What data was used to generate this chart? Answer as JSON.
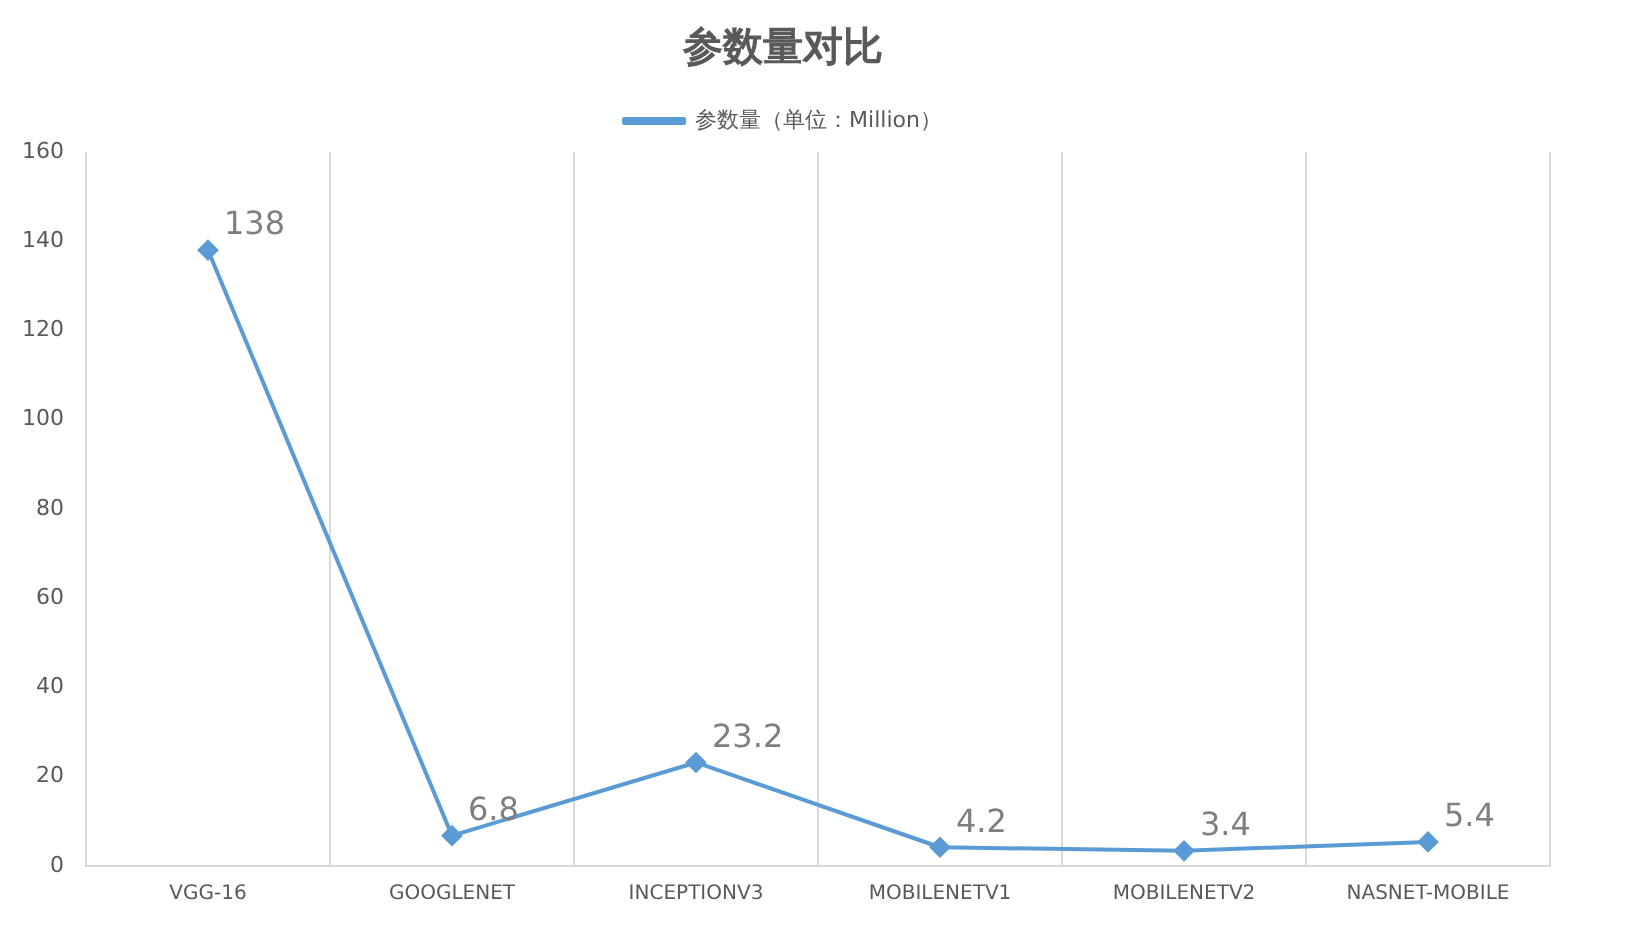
{
  "chart_data": {
    "type": "line",
    "title": "参数量对比",
    "categories": [
      "VGG-16",
      "GOOGLENET",
      "INCEPTIONV3",
      "MOBILENETV1",
      "MOBILENETV2",
      "NASNET-MOBILE"
    ],
    "series": [
      {
        "name": "参数量（单位：Million）",
        "color": "#5b9bd5",
        "values": [
          138,
          6.8,
          23.2,
          4.2,
          3.4,
          5.4
        ]
      }
    ],
    "ylim": [
      0,
      160
    ],
    "yticks": [
      0,
      20,
      40,
      60,
      80,
      100,
      120,
      140,
      160
    ],
    "grid": "x",
    "legend": "top",
    "marker": "diamond",
    "line_style": "solid",
    "data_labels": true
  }
}
